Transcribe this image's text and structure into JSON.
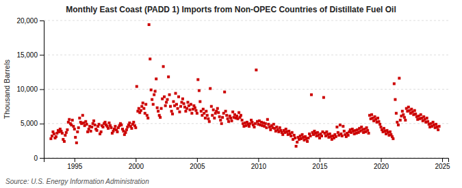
{
  "chart_data": {
    "type": "scatter",
    "title": "Monthly East Coast (PADD 1) Imports from Non-OPEC Countries of Distillate Fuel Oil",
    "ylabel": "Thousand Barrels",
    "annotation": "Source: U.S. Energy Information Administration",
    "color": "#cc0000",
    "marker": "square",
    "grid": "y",
    "xlim": [
      1992.5,
      2025.5
    ],
    "xticks": [
      1995,
      2000,
      2005,
      2010,
      2015,
      2020,
      2025
    ],
    "ylim": [
      0,
      20000
    ],
    "yticks": [
      0,
      {
        "value": 5000,
        "label": "5,000"
      },
      {
        "value": 10000,
        "label": "10,000"
      },
      {
        "value": 15000,
        "label": "15,000"
      },
      {
        "value": 20000,
        "label": "20,000"
      }
    ],
    "x": [
      1993.08,
      1993.17,
      1993.25,
      1993.33,
      1993.42,
      1993.5,
      1993.58,
      1993.67,
      1993.75,
      1993.83,
      1993.92,
      1994.0,
      1994.08,
      1994.17,
      1994.25,
      1994.33,
      1994.42,
      1994.5,
      1994.58,
      1994.67,
      1994.75,
      1994.83,
      1994.92,
      1995.0,
      1995.08,
      1995.17,
      1995.25,
      1995.33,
      1995.42,
      1995.5,
      1995.58,
      1995.67,
      1995.75,
      1995.83,
      1995.92,
      1996.0,
      1996.08,
      1996.17,
      1996.25,
      1996.33,
      1996.42,
      1996.5,
      1996.58,
      1996.67,
      1996.75,
      1996.83,
      1996.92,
      1997.0,
      1997.08,
      1997.17,
      1997.25,
      1997.33,
      1997.42,
      1997.5,
      1997.58,
      1997.67,
      1997.75,
      1997.83,
      1997.92,
      1998.0,
      1998.08,
      1998.17,
      1998.25,
      1998.33,
      1998.42,
      1998.5,
      1998.58,
      1998.67,
      1998.75,
      1998.83,
      1998.92,
      1999.0,
      1999.08,
      1999.17,
      1999.25,
      1999.33,
      1999.42,
      1999.5,
      1999.58,
      1999.67,
      1999.75,
      1999.83,
      1999.92,
      2000.0,
      2000.08,
      2000.17,
      2000.25,
      2000.33,
      2000.42,
      2000.5,
      2000.58,
      2000.67,
      2000.75,
      2000.83,
      2000.92,
      2001.0,
      2001.08,
      2001.17,
      2001.25,
      2001.33,
      2001.42,
      2001.5,
      2001.58,
      2001.67,
      2001.75,
      2001.83,
      2001.92,
      2002.0,
      2002.08,
      2002.17,
      2002.25,
      2002.33,
      2002.42,
      2002.5,
      2002.58,
      2002.67,
      2002.75,
      2002.83,
      2002.92,
      2003.0,
      2003.08,
      2003.17,
      2003.25,
      2003.33,
      2003.42,
      2003.5,
      2003.58,
      2003.67,
      2003.75,
      2003.83,
      2003.92,
      2004.0,
      2004.08,
      2004.17,
      2004.25,
      2004.33,
      2004.42,
      2004.5,
      2004.58,
      2004.67,
      2004.75,
      2004.83,
      2004.92,
      2005.0,
      2005.08,
      2005.17,
      2005.25,
      2005.33,
      2005.42,
      2005.5,
      2005.58,
      2005.67,
      2005.75,
      2005.83,
      2005.92,
      2006.0,
      2006.08,
      2006.17,
      2006.25,
      2006.33,
      2006.42,
      2006.5,
      2006.58,
      2006.67,
      2006.75,
      2006.83,
      2006.92,
      2007.0,
      2007.08,
      2007.17,
      2007.25,
      2007.33,
      2007.42,
      2007.5,
      2007.58,
      2007.67,
      2007.75,
      2007.83,
      2007.92,
      2008.0,
      2008.08,
      2008.17,
      2008.25,
      2008.33,
      2008.42,
      2008.5,
      2008.58,
      2008.67,
      2008.75,
      2008.83,
      2008.92,
      2009.0,
      2009.08,
      2009.17,
      2009.25,
      2009.33,
      2009.42,
      2009.5,
      2009.58,
      2009.67,
      2009.75,
      2009.83,
      2009.92,
      2010.0,
      2010.08,
      2010.17,
      2010.25,
      2010.33,
      2010.42,
      2010.5,
      2010.58,
      2010.67,
      2010.75,
      2010.83,
      2010.92,
      2011.0,
      2011.08,
      2011.17,
      2011.25,
      2011.33,
      2011.42,
      2011.5,
      2011.58,
      2011.67,
      2011.75,
      2011.83,
      2011.92,
      2012.0,
      2012.08,
      2012.17,
      2012.25,
      2012.33,
      2012.42,
      2012.5,
      2012.58,
      2012.67,
      2012.75,
      2012.83,
      2012.92,
      2013.0,
      2013.08,
      2013.17,
      2013.25,
      2013.33,
      2013.42,
      2013.5,
      2013.58,
      2013.67,
      2013.75,
      2013.83,
      2013.92,
      2014.0,
      2014.08,
      2014.17,
      2014.25,
      2014.33,
      2014.42,
      2014.5,
      2014.58,
      2014.67,
      2014.75,
      2014.83,
      2014.92,
      2015.0,
      2015.08,
      2015.17,
      2015.25,
      2015.33,
      2015.42,
      2015.5,
      2015.58,
      2015.67,
      2015.75,
      2015.83,
      2015.92,
      2016.0,
      2016.08,
      2016.17,
      2016.25,
      2016.33,
      2016.42,
      2016.5,
      2016.58,
      2016.67,
      2016.75,
      2016.83,
      2016.92,
      2017.0,
      2017.08,
      2017.17,
      2017.25,
      2017.33,
      2017.42,
      2017.5,
      2017.58,
      2017.67,
      2017.75,
      2017.83,
      2017.92,
      2018.0,
      2018.08,
      2018.17,
      2018.25,
      2018.33,
      2018.42,
      2018.5,
      2018.58,
      2018.67,
      2018.75,
      2018.83,
      2018.92,
      2019.0,
      2019.08,
      2019.17,
      2019.25,
      2019.33,
      2019.42,
      2019.5,
      2019.58,
      2019.67,
      2019.75,
      2019.83,
      2019.92,
      2020.0,
      2020.08,
      2020.17,
      2020.25,
      2020.33,
      2020.42,
      2020.5,
      2020.58,
      2020.67,
      2020.75,
      2020.83,
      2020.92,
      2021.0,
      2021.08,
      2021.17,
      2021.25,
      2021.33,
      2021.42,
      2021.5,
      2021.58,
      2021.67,
      2021.75,
      2021.83,
      2021.92,
      2022.0,
      2022.08,
      2022.17,
      2022.25,
      2022.33,
      2022.42,
      2022.5,
      2022.58,
      2022.67,
      2022.75,
      2022.83,
      2022.92,
      2023.0,
      2023.08,
      2023.17,
      2023.25,
      2023.33,
      2023.42,
      2023.5,
      2023.58,
      2023.67,
      2023.75,
      2023.83,
      2023.92,
      2024.0,
      2024.08,
      2024.17,
      2024.25,
      2024.33,
      2024.42,
      2024.5,
      2024.58,
      2024.67,
      2024.75
    ],
    "values": [
      2800,
      3200,
      3800,
      3500,
      2900,
      3100,
      3600,
      4000,
      3800,
      4200,
      3900,
      3600,
      2700,
      2400,
      3300,
      3700,
      4100,
      5200,
      5600,
      5000,
      4800,
      5500,
      4600,
      4200,
      3000,
      2200,
      3800,
      4400,
      5800,
      5200,
      5000,
      6200,
      5100,
      4700,
      5300,
      4900,
      3800,
      4200,
      4600,
      3900,
      4500,
      5000,
      5400,
      4800,
      4200,
      4000,
      4600,
      4900,
      3500,
      3800,
      4700,
      4500,
      5000,
      5200,
      4800,
      4600,
      4300,
      5100,
      4700,
      4400,
      3600,
      3900,
      4200,
      4600,
      4100,
      3800,
      4400,
      4700,
      5000,
      4800,
      4200,
      3900,
      3400,
      3700,
      4100,
      4500,
      4800,
      5100,
      4600,
      4300,
      4900,
      5200,
      4700,
      4400,
      10400,
      6800,
      7200,
      6600,
      6900,
      7500,
      8000,
      7200,
      6500,
      7800,
      6200,
      5800,
      19400,
      14400,
      9900,
      8500,
      7800,
      9200,
      9700,
      11500,
      7300,
      6800,
      6200,
      5900,
      7200,
      8600,
      13300,
      8900,
      7600,
      8100,
      8500,
      11800,
      9200,
      7500,
      6800,
      6400,
      8200,
      7600,
      9400,
      7800,
      7200,
      8900,
      6700,
      7500,
      8100,
      8600,
      7900,
      7400,
      6800,
      7200,
      8100,
      7600,
      7000,
      7800,
      6500,
      7100,
      7600,
      7300,
      6900,
      6500,
      11400,
      9800,
      8200,
      6800,
      6200,
      7100,
      6500,
      5800,
      6800,
      6200,
      5700,
      5300,
      10100,
      7500,
      6200,
      7000,
      5800,
      6500,
      6800,
      7200,
      6600,
      6000,
      5500,
      5000,
      5900,
      6500,
      9600,
      6800,
      6200,
      5700,
      5300,
      6100,
      5800,
      5400,
      6700,
      5900,
      6300,
      5800,
      6100,
      5700,
      6600,
      5900,
      6200,
      5500,
      5000,
      4600,
      5100,
      4700,
      5200,
      4900,
      4600,
      5000,
      5500,
      5200,
      4800,
      4500,
      5000,
      12800,
      5300,
      4900,
      5400,
      4800,
      5200,
      4700,
      5100,
      4600,
      5000,
      4400,
      5600,
      4900,
      4500,
      4100,
      4700,
      4400,
      4900,
      4300,
      3900,
      4500,
      4100,
      3800,
      4400,
      4000,
      3700,
      3400,
      4000,
      3700,
      4200,
      3800,
      3400,
      3900,
      3500,
      3200,
      3700,
      2700,
      3300,
      2900,
      1700,
      2300,
      3000,
      2700,
      3200,
      2800,
      3400,
      3000,
      2600,
      3100,
      2800,
      2400,
      2900,
      3500,
      3200,
      9200,
      3700,
      3400,
      3900,
      3600,
      3200,
      3700,
      3300,
      2900,
      3500,
      3200,
      3800,
      8800,
      3600,
      3200,
      3800,
      3400,
      3000,
      3500,
      3100,
      2700,
      3200,
      2900,
      3400,
      3100,
      4500,
      3700,
      3300,
      4800,
      3500,
      3200,
      4600,
      3900,
      3400,
      3100,
      3600,
      3300,
      3800,
      4100,
      3700,
      4200,
      3900,
      3500,
      4000,
      3600,
      4100,
      3700,
      4300,
      3900,
      4500,
      4100,
      3700,
      4200,
      3800,
      4400,
      4000,
      3600,
      6200,
      5700,
      6300,
      5800,
      5400,
      6000,
      5600,
      5200,
      5800,
      5300,
      4900,
      4500,
      4100,
      3800,
      4300,
      3900,
      3500,
      4000,
      3700,
      3300,
      3800,
      3400,
      3100,
      2800,
      10800,
      8500,
      6500,
      5200,
      4800,
      11600,
      5500,
      6100,
      6800,
      6300,
      5900,
      5500,
      7200,
      6800,
      7400,
      6900,
      6500,
      7100,
      6700,
      6300,
      6900,
      6400,
      6000,
      5600,
      6100,
      5700,
      6300,
      5800,
      5400,
      6000,
      5600,
      5200,
      5800,
      5300,
      4900,
      4500,
      5000,
      4600,
      5200,
      4800,
      4400,
      4900,
      4500,
      4100,
      4600
    ]
  }
}
